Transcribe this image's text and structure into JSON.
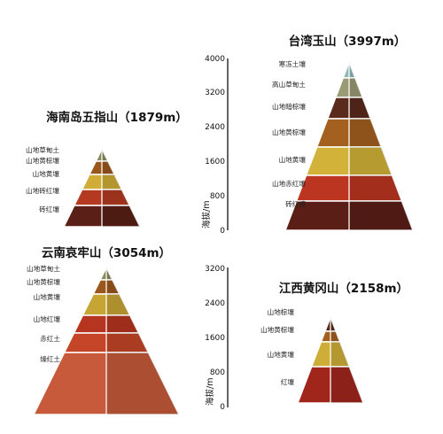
{
  "pyramids": [
    {
      "id": "taiwan",
      "title": "台湾玉山（3997m）",
      "layers": [
        {
          "label": "寒冻土壤",
          "color": "#8fb8b6"
        },
        {
          "label": "高山草甸土",
          "color": "#9a9a74"
        },
        {
          "label": "山地暗棕壤",
          "color": "#5a2a1c"
        },
        {
          "label": "山地黄棕壤",
          "color": "#a3601e"
        },
        {
          "label": "山地黄壤",
          "color": "#d2b238"
        },
        {
          "label": "山地赤红壤",
          "color": "#bb3520"
        },
        {
          "label": "砖红壤",
          "color": "#5b1e16"
        }
      ],
      "axis": {
        "label": "海拔/m",
        "ticks": [
          "4000",
          "3200",
          "2400",
          "1600",
          "800",
          "0"
        ]
      }
    },
    {
      "id": "hainan",
      "title": "海南岛五指山（1879m）",
      "layers": [
        {
          "label": "山地草甸土",
          "color": "#8a8a5e"
        },
        {
          "label": "山地黄棕壤",
          "color": "#9a571c"
        },
        {
          "label": "山地黄壤",
          "color": "#cfad36"
        },
        {
          "label": "山地砖红壤",
          "color": "#b33a20"
        },
        {
          "label": "砖红壤",
          "color": "#5a1f16"
        }
      ]
    },
    {
      "id": "yunnan",
      "title": "云南哀牢山（3054m）",
      "layers": [
        {
          "label": "山地草甸土",
          "color": "#8a8a5e"
        },
        {
          "label": "山地黄棕壤",
          "color": "#9a571c"
        },
        {
          "label": "山地黄壤",
          "color": "#c7a534"
        },
        {
          "label": "山地红壤",
          "color": "#b63520"
        },
        {
          "label": "赤红土",
          "color": "#c44528"
        },
        {
          "label": "燥红土",
          "color": "#c65a3a"
        }
      ]
    },
    {
      "id": "jiangxi",
      "title": "江西黄冈山（2158m）",
      "layers": [
        {
          "label": "山地棕壤",
          "color": "#5a2a1c"
        },
        {
          "label": "山地黄棕壤",
          "color": "#a3601e"
        },
        {
          "label": "山地黄壤",
          "color": "#ceae36"
        },
        {
          "label": "红壤",
          "color": "#a0261c"
        }
      ],
      "axis": {
        "label": "海拔/m",
        "ticks": [
          "3200",
          "2400",
          "1600",
          "800",
          "0"
        ]
      }
    }
  ]
}
